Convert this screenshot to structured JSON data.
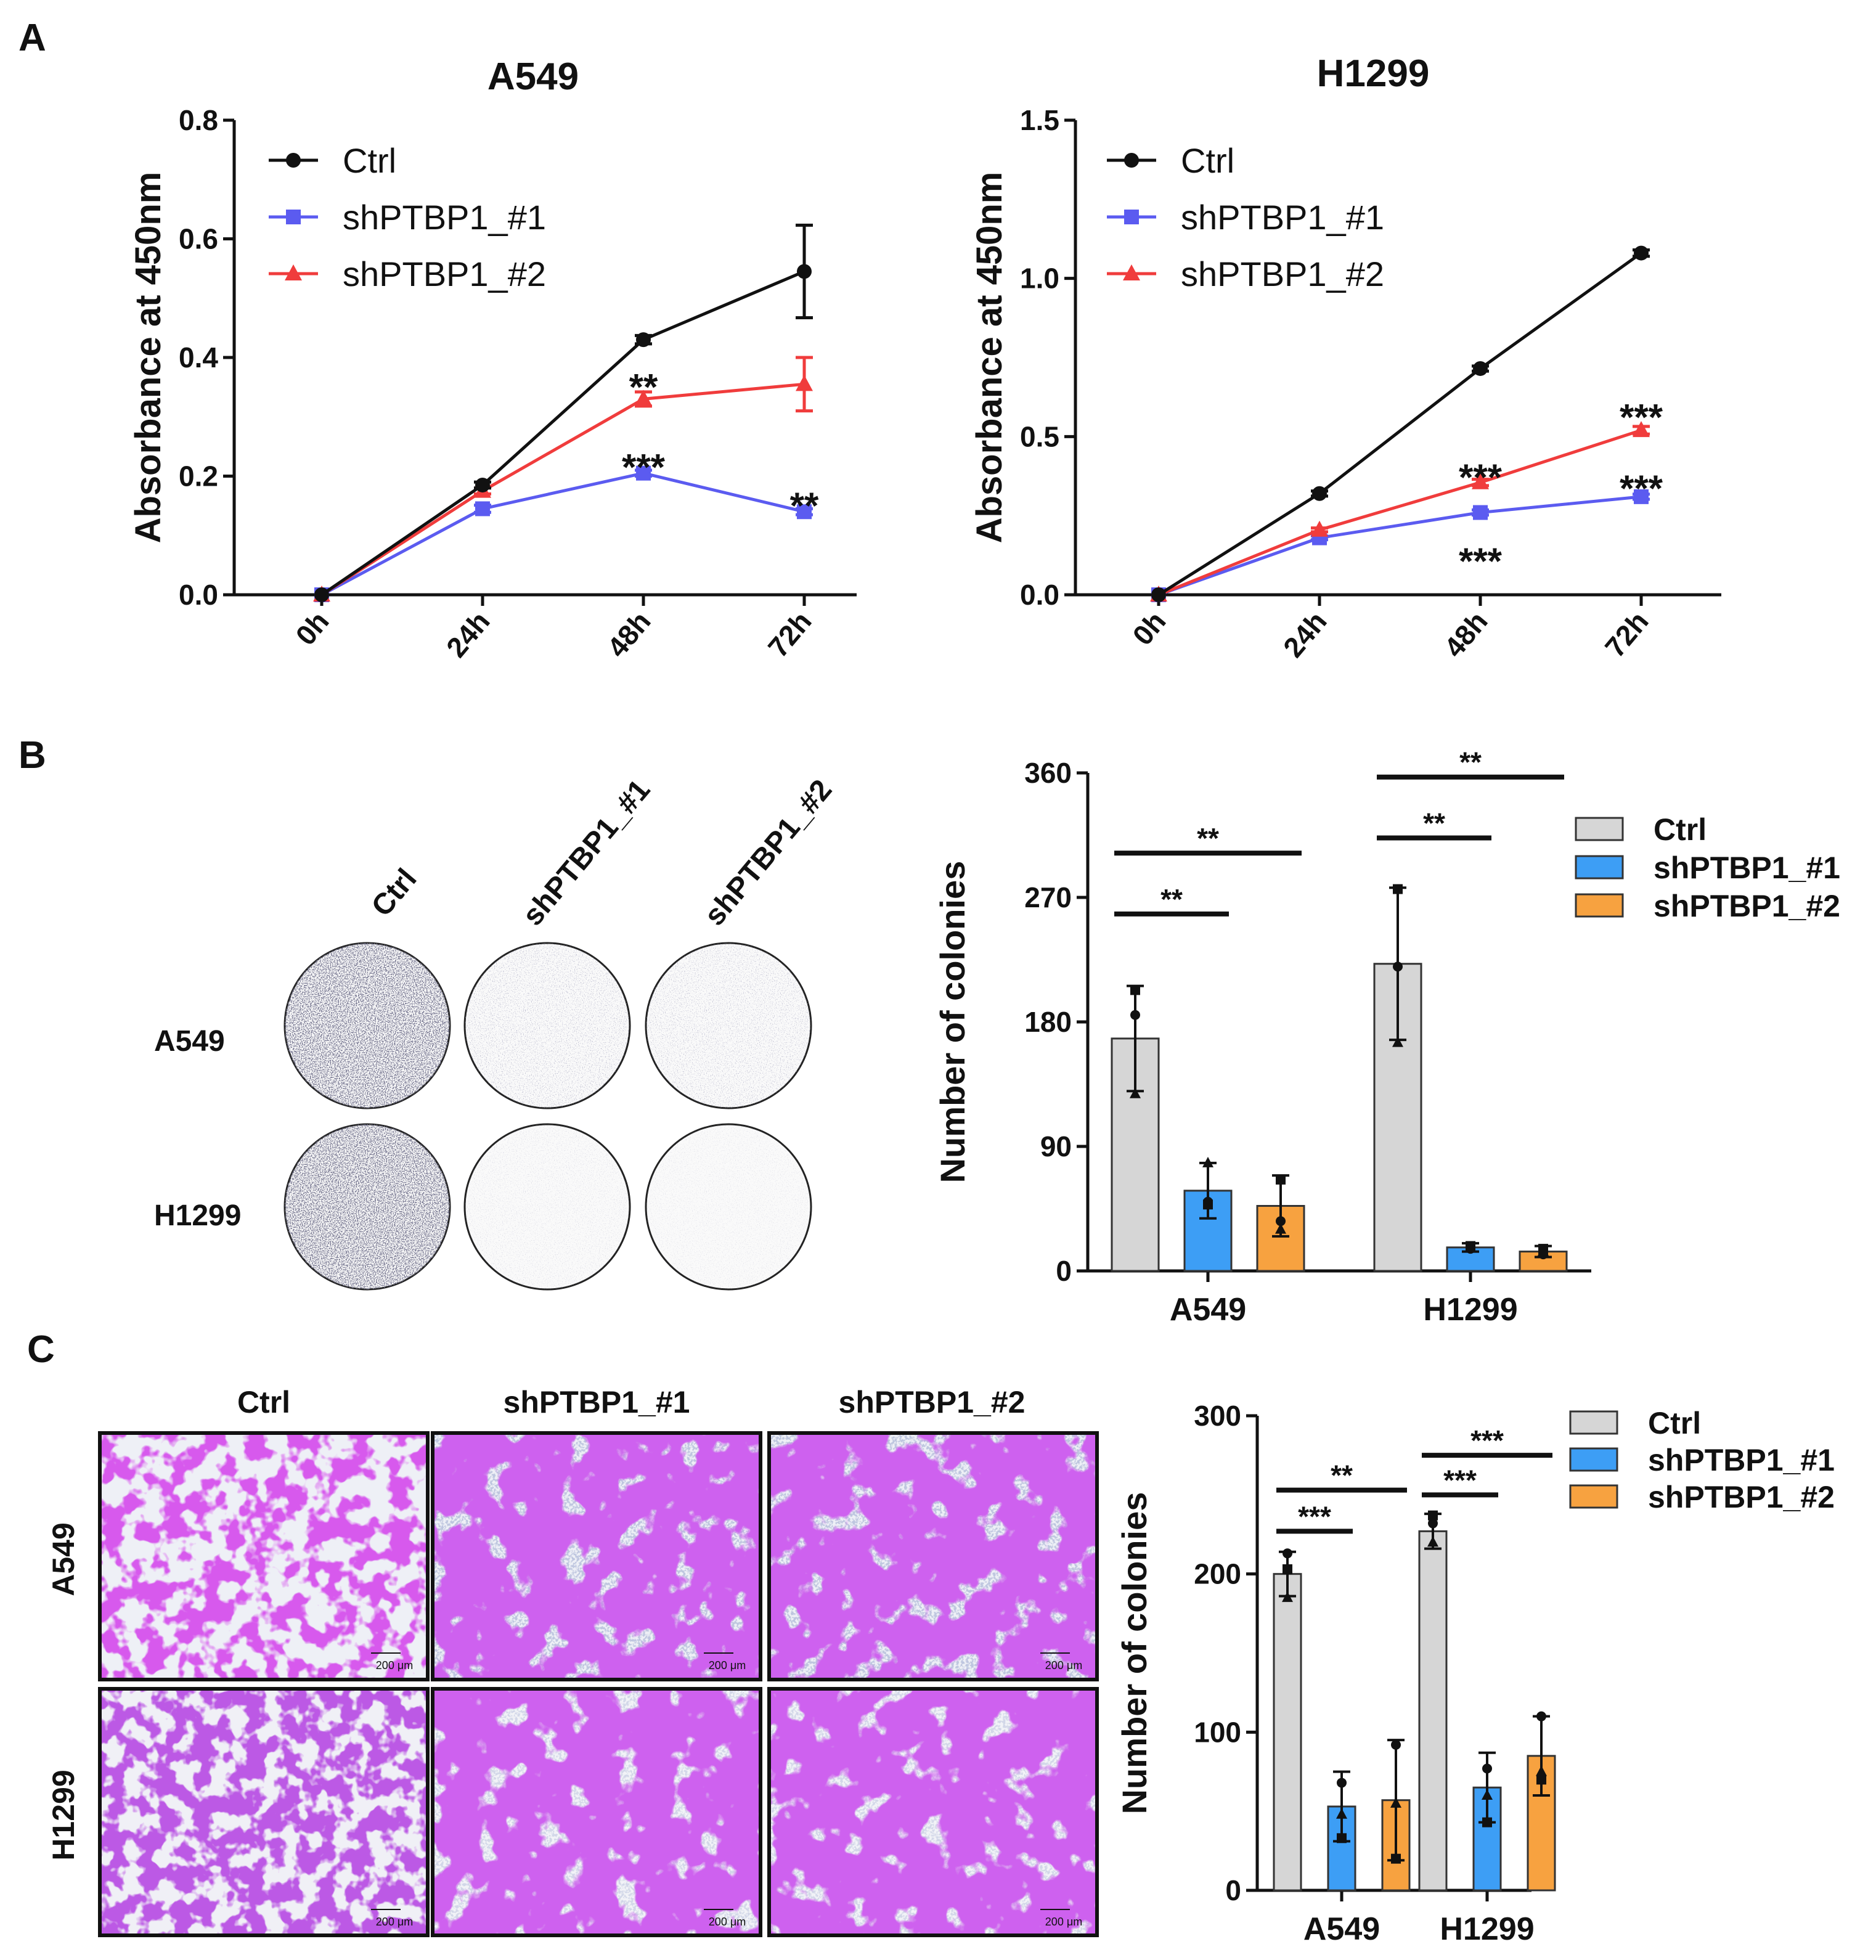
{
  "panels": {
    "a": "A",
    "b": "B",
    "c": "C"
  },
  "colors": {
    "ctrl": "#111111",
    "sh1": "#5b5bf0",
    "sh2": "#f03c3c",
    "bar_ctrl": "#d6d6d6",
    "bar_sh1": "#3d9ef5",
    "bar_sh2": "#f7a240"
  },
  "plates": {
    "columns": [
      "Ctrl",
      "shPTBP1_#1",
      "shPTBP1_#2"
    ],
    "rows": [
      "A549",
      "H1299"
    ]
  },
  "transwell": {
    "columns": [
      "Ctrl",
      "shPTBP1_#1",
      "shPTBP1_#2"
    ],
    "rows": [
      "A549",
      "H1299"
    ],
    "scale_label": "200 μm"
  },
  "chart_data": [
    {
      "id": "a549_line",
      "type": "line",
      "title": "A549",
      "ylabel": "Absorbance at 450nm",
      "xlabel": "",
      "categories": [
        "0h",
        "24h",
        "48h",
        "72h"
      ],
      "ylim": [
        0,
        0.8
      ],
      "yticks": [
        "0.0",
        "0.2",
        "0.4",
        "0.6",
        "0.8"
      ],
      "ytick_values": [
        0,
        0.2,
        0.4,
        0.6,
        0.8
      ],
      "legend": [
        "Ctrl",
        "shPTBP1_#1",
        "shPTBP1_#2"
      ],
      "series": [
        {
          "name": "Ctrl",
          "values": [
            0.0,
            0.185,
            0.43,
            0.545
          ],
          "errors": [
            0,
            0.005,
            0.007,
            0.078
          ]
        },
        {
          "name": "shPTBP1_#1",
          "values": [
            0.0,
            0.145,
            0.205,
            0.14
          ],
          "errors": [
            0,
            0.006,
            0.005,
            0.005
          ]
        },
        {
          "name": "shPTBP1_#2",
          "values": [
            0.0,
            0.175,
            0.33,
            0.355
          ],
          "errors": [
            0,
            0.005,
            0.012,
            0.045
          ]
        }
      ],
      "annotations": [
        {
          "text": "**",
          "x": "48h",
          "y": 0.36
        },
        {
          "text": "***",
          "x": "48h",
          "y": 0.225
        },
        {
          "text": "**",
          "x": "72h",
          "y": 0.16
        }
      ]
    },
    {
      "id": "h1299_line",
      "type": "line",
      "title": "H1299",
      "ylabel": "Absorbance at 450nm",
      "xlabel": "",
      "categories": [
        "0h",
        "24h",
        "48h",
        "72h"
      ],
      "ylim": [
        0,
        1.5
      ],
      "yticks": [
        "0.0",
        "0.5",
        "1.0",
        "1.5"
      ],
      "ytick_values": [
        0,
        0.5,
        1.0,
        1.5
      ],
      "legend": [
        "Ctrl",
        "shPTBP1_#1",
        "shPTBP1_#2"
      ],
      "series": [
        {
          "name": "Ctrl",
          "values": [
            0.0,
            0.32,
            0.715,
            1.08
          ],
          "errors": [
            0,
            0.008,
            0.008,
            0.01
          ]
        },
        {
          "name": "shPTBP1_#1",
          "values": [
            0.0,
            0.18,
            0.26,
            0.31
          ],
          "errors": [
            0,
            0.006,
            0.008,
            0.008
          ]
        },
        {
          "name": "shPTBP1_#2",
          "values": [
            0.0,
            0.205,
            0.355,
            0.52
          ],
          "errors": [
            0,
            0.006,
            0.01,
            0.012
          ]
        }
      ],
      "annotations": [
        {
          "text": "***",
          "x": "48h",
          "y": 0.39
        },
        {
          "text": "***",
          "x": "48h",
          "y": 0.125
        },
        {
          "text": "***",
          "x": "72h",
          "y": 0.58
        },
        {
          "text": "***",
          "x": "72h",
          "y": 0.355
        }
      ]
    },
    {
      "id": "colony_bar",
      "type": "bar",
      "ylabel": "Number of colonies",
      "categories": [
        "A549",
        "H1299"
      ],
      "ylim": [
        0,
        360
      ],
      "yticks": [
        "0",
        "90",
        "180",
        "270",
        "360"
      ],
      "ytick_values": [
        0,
        90,
        180,
        270,
        360
      ],
      "legend": [
        "Ctrl",
        "shPTBP1_#1",
        "shPTBP1_#2"
      ],
      "series": [
        {
          "name": "Ctrl",
          "values": [
            168,
            222
          ],
          "errors": [
            38,
            55
          ],
          "points": [
            [
              185,
              203,
              128
            ],
            [
              220,
              276,
              165
            ]
          ]
        },
        {
          "name": "shPTBP1_#1",
          "values": [
            58,
            17
          ],
          "errors": [
            20,
            3
          ],
          "points": [
            [
              50,
              48,
              78
            ],
            [
              16,
              18,
              17
            ]
          ]
        },
        {
          "name": "shPTBP1_#2",
          "values": [
            47,
            14
          ],
          "errors": [
            22,
            4
          ],
          "points": [
            [
              36,
              66,
              30
            ],
            [
              12,
              16,
              14
            ]
          ]
        }
      ],
      "significance": [
        {
          "text": "**",
          "group": "A549",
          "from": "Ctrl",
          "to": "shPTBP1_#1",
          "y": 258
        },
        {
          "text": "**",
          "group": "A549",
          "from": "Ctrl",
          "to": "shPTBP1_#2",
          "y": 302
        },
        {
          "text": "**",
          "group": "H1299",
          "from": "Ctrl",
          "to": "shPTBP1_#1",
          "y": 313
        },
        {
          "text": "**",
          "group": "H1299",
          "from": "Ctrl",
          "to": "shPTBP1_#2",
          "y": 357
        }
      ]
    },
    {
      "id": "migration_bar",
      "type": "bar",
      "ylabel": "Number of colonies",
      "categories": [
        "A549",
        "H1299"
      ],
      "ylim": [
        0,
        300
      ],
      "yticks": [
        "0",
        "100",
        "200",
        "300"
      ],
      "ytick_values": [
        0,
        100,
        200,
        300
      ],
      "legend": [
        "Ctrl",
        "shPTBP1_#1",
        "shPTBP1_#2"
      ],
      "series": [
        {
          "name": "Ctrl",
          "values": [
            200,
            227
          ],
          "errors": [
            14,
            11
          ],
          "points": [
            [
              213,
              203,
              185
            ],
            [
              232,
              237,
              220
            ]
          ]
        },
        {
          "name": "shPTBP1_#1",
          "values": [
            53,
            65
          ],
          "errors": [
            22,
            22
          ],
          "points": [
            [
              68,
              33,
              48
            ],
            [
              77,
              43,
              60
            ]
          ]
        },
        {
          "name": "shPTBP1_#2",
          "values": [
            57,
            85
          ],
          "errors": [
            38,
            25
          ],
          "points": [
            [
              92,
              20,
              55
            ],
            [
              110,
              70,
              75
            ]
          ]
        }
      ],
      "significance": [
        {
          "text": "***",
          "group": "A549",
          "from": "Ctrl",
          "to": "shPTBP1_#1",
          "y": 227
        },
        {
          "text": "**",
          "group": "A549",
          "from": "Ctrl",
          "to": "shPTBP1_#2",
          "y": 253
        },
        {
          "text": "***",
          "group": "H1299",
          "from": "Ctrl",
          "to": "shPTBP1_#1",
          "y": 250
        },
        {
          "text": "***",
          "group": "H1299",
          "from": "Ctrl",
          "to": "shPTBP1_#2",
          "y": 275
        }
      ]
    }
  ]
}
